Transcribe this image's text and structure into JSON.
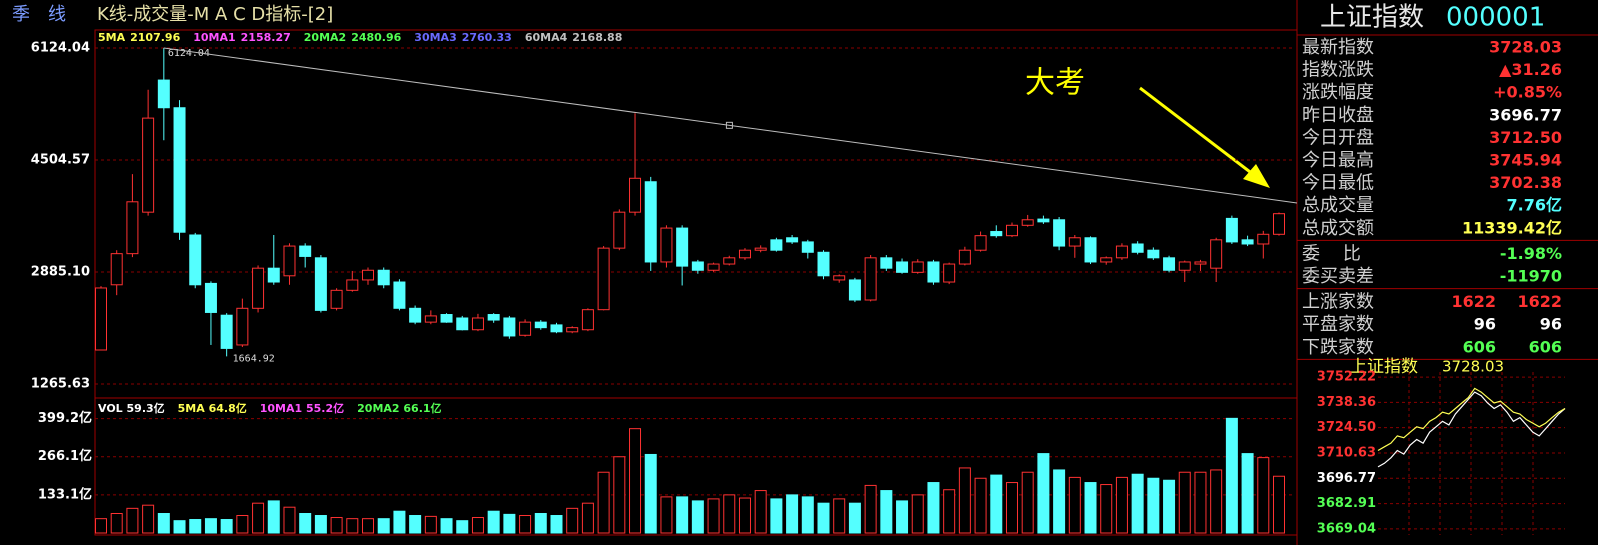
{
  "header": {
    "period": "季　线",
    "title": "K线-成交量-M A C D指标-[2]"
  },
  "chart_data": [
    {
      "type": "candlestick",
      "indicators": [
        {
          "name": "5MA",
          "value": 2107.96,
          "color": "#ffff54"
        },
        {
          "name": "10MA1",
          "value": 2158.27,
          "color": "#ff54ff"
        },
        {
          "name": "20MA2",
          "value": 2480.96,
          "color": "#54ff54"
        },
        {
          "name": "30MA3",
          "value": 2760.33,
          "color": "#6a6aff"
        },
        {
          "name": "60MA4",
          "value": 2168.88,
          "color": "#c0c0c0"
        }
      ],
      "ohlc": [
        [
          1757,
          2680,
          1750,
          2654
        ],
        [
          2700,
          3200,
          2550,
          3150
        ],
        [
          3150,
          4300,
          3100,
          3900
        ],
        [
          3750,
          5520,
          3700,
          5110
        ],
        [
          5660,
          6124.04,
          4790,
          5260
        ],
        [
          5260,
          5370,
          3350,
          3460
        ],
        [
          3420,
          3450,
          2650,
          2700
        ],
        [
          2720,
          2750,
          1830,
          2300
        ],
        [
          2260,
          2290,
          1664.92,
          1780
        ],
        [
          1830,
          2500,
          1800,
          2360
        ],
        [
          2360,
          2980,
          2300,
          2940
        ],
        [
          2940,
          3420,
          2700,
          2740
        ],
        [
          2830,
          3300,
          2700,
          3260
        ],
        [
          3260,
          3300,
          2950,
          3110
        ],
        [
          3090,
          3130,
          2300,
          2330
        ],
        [
          2360,
          2650,
          2330,
          2620
        ],
        [
          2620,
          2900,
          2600,
          2770
        ],
        [
          2770,
          2950,
          2700,
          2910
        ],
        [
          2910,
          2950,
          2650,
          2700
        ],
        [
          2740,
          2780,
          2330,
          2360
        ],
        [
          2360,
          2400,
          2130,
          2160
        ],
        [
          2160,
          2330,
          2130,
          2250
        ],
        [
          2270,
          2290,
          2150,
          2160
        ],
        [
          2220,
          2250,
          2040,
          2050
        ],
        [
          2050,
          2280,
          2030,
          2220
        ],
        [
          2270,
          2290,
          2150,
          2190
        ],
        [
          2220,
          2250,
          1920,
          1960
        ],
        [
          1970,
          2200,
          1950,
          2160
        ],
        [
          2160,
          2190,
          2050,
          2080
        ],
        [
          2120,
          2150,
          2000,
          2020
        ],
        [
          2020,
          2100,
          2000,
          2080
        ],
        [
          2050,
          2360,
          2030,
          2340
        ],
        [
          2340,
          3260,
          2330,
          3230
        ],
        [
          3230,
          3790,
          3200,
          3750
        ],
        [
          3750,
          5180,
          3700,
          4240
        ],
        [
          4190,
          4260,
          2900,
          3030
        ],
        [
          3030,
          3560,
          2950,
          3520
        ],
        [
          3520,
          3560,
          2690,
          2970
        ],
        [
          3030,
          3060,
          2860,
          2910
        ],
        [
          2910,
          3020,
          2890,
          3000
        ],
        [
          3000,
          3120,
          2980,
          3090
        ],
        [
          3090,
          3230,
          3060,
          3200
        ],
        [
          3200,
          3270,
          3170,
          3230
        ],
        [
          3350,
          3380,
          3180,
          3200
        ],
        [
          3380,
          3420,
          3290,
          3320
        ],
        [
          3320,
          3350,
          3080,
          3170
        ],
        [
          3170,
          3200,
          2780,
          2830
        ],
        [
          2770,
          2850,
          2730,
          2830
        ],
        [
          2770,
          2800,
          2450,
          2480
        ],
        [
          2480,
          3130,
          2460,
          3090
        ],
        [
          3090,
          3130,
          2900,
          2940
        ],
        [
          3030,
          3080,
          2860,
          2880
        ],
        [
          2880,
          3070,
          2860,
          3030
        ],
        [
          3030,
          3060,
          2700,
          2740
        ],
        [
          2740,
          3020,
          2710,
          3000
        ],
        [
          3000,
          3250,
          2980,
          3200
        ],
        [
          3200,
          3470,
          3180,
          3410
        ],
        [
          3470,
          3560,
          3380,
          3410
        ],
        [
          3410,
          3600,
          3390,
          3560
        ],
        [
          3560,
          3710,
          3540,
          3640
        ],
        [
          3650,
          3700,
          3580,
          3610
        ],
        [
          3640,
          3680,
          3200,
          3260
        ],
        [
          3260,
          3420,
          3090,
          3380
        ],
        [
          3380,
          3400,
          3000,
          3030
        ],
        [
          3030,
          3110,
          2990,
          3090
        ],
        [
          3090,
          3300,
          3060,
          3260
        ],
        [
          3290,
          3330,
          3140,
          3170
        ],
        [
          3200,
          3240,
          3060,
          3090
        ],
        [
          3090,
          3120,
          2880,
          2910
        ],
        [
          2910,
          3050,
          2740,
          3030
        ],
        [
          3000,
          3060,
          2900,
          3030
        ],
        [
          2940,
          3380,
          2740,
          3350
        ],
        [
          3660,
          3700,
          3290,
          3320
        ],
        [
          3350,
          3410,
          3260,
          3290
        ],
        [
          3290,
          3480,
          3080,
          3430
        ],
        [
          3430,
          3746,
          3410,
          3728
        ]
      ],
      "ylim": [
        1063,
        6384
      ],
      "yticks": [
        6124.04,
        4504.57,
        {
          "value": 2885.1,
          "label": "2885.10"
        },
        1265.63
      ],
      "grid": true,
      "up_color": "#ff3232",
      "down_color": "#54ffff",
      "trend_line": [
        6124.04,
        3883
      ],
      "trend_color": "#bdbdbd",
      "annotation": {
        "text": "大考",
        "color": "#ffff00"
      }
    },
    {
      "type": "bar",
      "indicators": [
        {
          "text": "VOL 59.3亿",
          "color": "#ffffff"
        },
        {
          "text": "5MA 64.8亿",
          "color": "#ffff54"
        },
        {
          "text": "10MA1 55.2亿",
          "color": "#ff54ff"
        },
        {
          "text": "20MA2 66.1亿",
          "color": "#54ff54"
        }
      ],
      "values": [
        50,
        68,
        86,
        97,
        68,
        43,
        47,
        50,
        47,
        61,
        104,
        112,
        90,
        68,
        61,
        54,
        50,
        50,
        50,
        76,
        61,
        58,
        50,
        43,
        54,
        76,
        65,
        61,
        68,
        61,
        86,
        104,
        212,
        266,
        364,
        274,
        126,
        126,
        112,
        119,
        133,
        122,
        148,
        119,
        133,
        126,
        104,
        119,
        104,
        166,
        148,
        112,
        133,
        176,
        151,
        227,
        191,
        202,
        176,
        212,
        277,
        220,
        194,
        176,
        169,
        194,
        205,
        191,
        184,
        212,
        212,
        220,
        400,
        277,
        263,
        198
      ],
      "ylim": [
        0,
        464
      ],
      "yticks": [
        {
          "value": 399.2,
          "label": "399.2亿"
        },
        {
          "value": 266.1,
          "label": "266.1亿"
        },
        {
          "value": 133.1,
          "label": "133.1亿"
        }
      ],
      "grid": true
    },
    {
      "type": "line",
      "title": "上证指数",
      "price": 3728.03,
      "series": [
        {
          "color": "#ffffff",
          "values": [
            3703,
            3705,
            3708,
            3712,
            3710,
            3715,
            3718,
            3716,
            3722,
            3725,
            3728,
            3726,
            3732,
            3736,
            3740,
            3744,
            3742,
            3738,
            3735,
            3737,
            3733,
            3728,
            3730,
            3726,
            3722,
            3720,
            3724,
            3728,
            3732,
            3735
          ]
        },
        {
          "color": "#ffff54",
          "values": [
            3712,
            3714,
            3716,
            3720,
            3719,
            3722,
            3725,
            3724,
            3728,
            3730,
            3733,
            3732,
            3735,
            3738,
            3741,
            3746,
            3744,
            3741,
            3738,
            3739,
            3736,
            3733,
            3732,
            3729,
            3727,
            3725,
            3727,
            3730,
            3733,
            3735
          ]
        }
      ],
      "ylim": [
        3665.7,
        3755
      ],
      "yticks": [
        3752.22,
        3738.36,
        {
          "value": 3724.5,
          "label": "3724.50"
        },
        3710.63,
        3696.77,
        3682.91,
        3669.04
      ],
      "tick_colors": [
        "#ff3232",
        "#ff3232",
        "#ff3232",
        "#ff3232",
        "#ffffff",
        "#54ff54",
        "#54ff54"
      ],
      "grid": true
    }
  ],
  "side_panel": {
    "name": "上证指数",
    "code": "000001",
    "groups": [
      [
        {
          "label": "最新指数",
          "values": [
            "3728.03"
          ],
          "color": "#ff3232"
        },
        {
          "label": "指数涨跌",
          "values": [
            "▲31.26"
          ],
          "color": "#ff3232"
        },
        {
          "label": "涨跌幅度",
          "values": [
            "+0.85%"
          ],
          "color": "#ff3232"
        },
        {
          "label": "昨日收盘",
          "values": [
            "3696.77"
          ],
          "color": "#ffffff"
        },
        {
          "label": "今日开盘",
          "values": [
            "3712.50"
          ],
          "color": "#ff3232"
        },
        {
          "label": "今日最高",
          "values": [
            "3745.94"
          ],
          "color": "#ff3232"
        },
        {
          "label": "今日最低",
          "values": [
            "3702.38"
          ],
          "color": "#ff3232"
        },
        {
          "label": "总成交量",
          "values": [
            "7.76亿"
          ],
          "color": "#54ffff"
        },
        {
          "label": "总成交额",
          "values": [
            "11339.42亿"
          ],
          "color": "#ffff54"
        }
      ],
      [
        {
          "label": "委    比",
          "values": [
            "-1.98%"
          ],
          "color": "#54ff54"
        },
        {
          "label": "委买卖差",
          "values": [
            "-11970"
          ],
          "color": "#54ff54"
        }
      ],
      [
        {
          "label": "上涨家数",
          "values": [
            "1622",
            "1622"
          ],
          "color": "#ff3232"
        },
        {
          "label": "平盘家数",
          "values": [
            "96",
            "96"
          ],
          "color": "#ffffff"
        },
        {
          "label": "下跌家数",
          "values": [
            "606",
            "606"
          ],
          "color": "#54ff54"
        }
      ]
    ]
  }
}
